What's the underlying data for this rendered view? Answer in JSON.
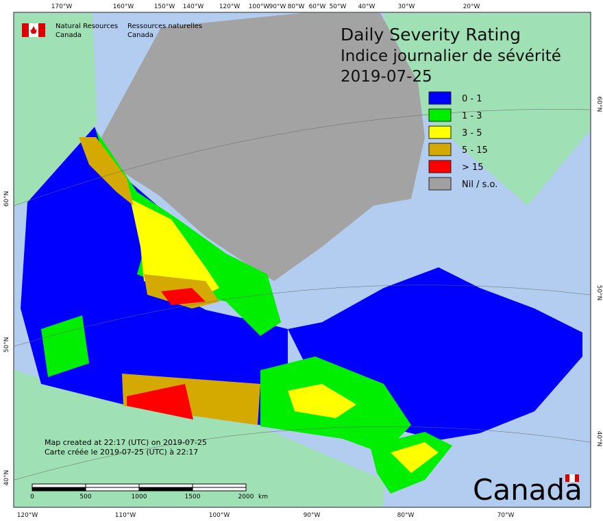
{
  "header": {
    "agency_en": [
      "Natural Resources",
      "Canada"
    ],
    "agency_fr": [
      "Ressources naturelles",
      "Canada"
    ]
  },
  "title": [
    "Daily Severity Rating",
    "Indice journalier de sévérité",
    "2019-07-25"
  ],
  "legend": [
    {
      "label": "0 - 1",
      "color": "#0000ff"
    },
    {
      "label": "1 - 3",
      "color": "#00ee00"
    },
    {
      "label": "3 - 5",
      "color": "#ffff00"
    },
    {
      "label": "5 - 15",
      "color": "#d4aa00"
    },
    {
      "label": "> 15",
      "color": "#ff0000"
    },
    {
      "label": "Nil / s.o.",
      "color": "#a0a0a0"
    }
  ],
  "graticule": {
    "top": [
      "170°W",
      "160°W",
      "150°W",
      "140°W",
      "120°W",
      "100°W",
      "90°W",
      "80°W",
      "60°W",
      "50°W",
      "40°W",
      "30°W",
      "20°W"
    ],
    "bottom": [
      "120°W",
      "110°W",
      "100°W",
      "90°W",
      "80°W",
      "70°W"
    ],
    "left": [
      "60°N",
      "50°N",
      "40°N"
    ],
    "right": [
      "60°N",
      "50°N",
      "40°N"
    ]
  },
  "scale": {
    "labels": [
      "0",
      "500",
      "1000",
      "1500",
      "2000"
    ],
    "unit": "km"
  },
  "notes": [
    "Map created at 22:17 (UTC) on 2019-07-25",
    "Carte créée le 2019-07-25 (UTC) à 22:17"
  ],
  "wordmark": "Canada"
}
